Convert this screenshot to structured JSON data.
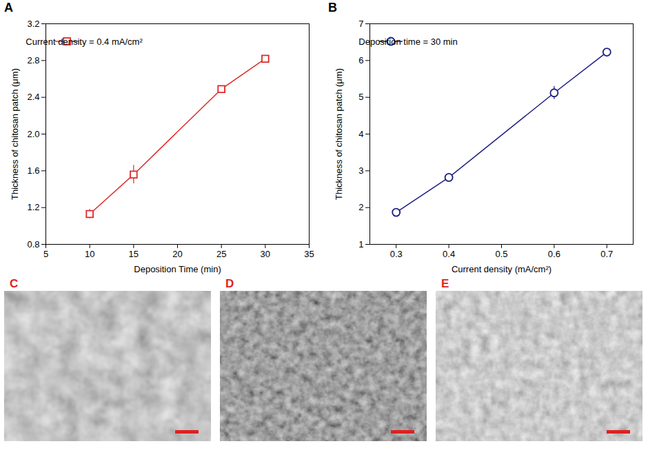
{
  "chart_data": [
    {
      "type": "line",
      "panel": "A",
      "x_label": "Deposition Time (min)",
      "y_label": "Thickness of chitosan patch (μm)",
      "x": [
        10,
        15,
        25,
        30
      ],
      "series": [
        {
          "name": "Current density = 0.4 mA/cm²",
          "color": "#e02828",
          "marker": "square",
          "values": [
            1.13,
            1.56,
            2.49,
            2.82
          ],
          "errors": [
            0.05,
            0.1,
            0.02,
            0.02
          ]
        }
      ],
      "xlim": [
        5,
        35
      ],
      "xticks": [
        5,
        10,
        15,
        20,
        25,
        30,
        35
      ],
      "ylim": [
        0.8,
        3.2
      ],
      "yticks": [
        0.8,
        1.2,
        1.6,
        {
          "value": 2,
          "label": "2.0"
        },
        2.4,
        2.8,
        3.2
      ],
      "grid": false,
      "legend": "upper left"
    },
    {
      "type": "line",
      "panel": "B",
      "x_label": "Current density (mA/cm²)",
      "y_label": "Thickness of chitosan patch (μm)",
      "x": [
        0.3,
        0.4,
        0.6,
        0.7
      ],
      "series": [
        {
          "name": "Deposition time = 30 min",
          "color": "#1c1c82",
          "marker": "circle",
          "values": [
            1.87,
            2.82,
            5.12,
            6.23
          ],
          "errors": [
            0.05,
            0.08,
            0.18,
            0.05
          ]
        }
      ],
      "xlim": [
        0.25,
        0.75
      ],
      "xticks": [
        0.3,
        0.4,
        0.5,
        0.6,
        0.7
      ],
      "ylim": [
        1,
        7
      ],
      "yticks": [
        1,
        2,
        3,
        4,
        5,
        6,
        7
      ],
      "grid": false,
      "legend": "upper left"
    }
  ],
  "images": [
    {
      "panel": "C"
    },
    {
      "panel": "D"
    },
    {
      "panel": "E"
    }
  ]
}
